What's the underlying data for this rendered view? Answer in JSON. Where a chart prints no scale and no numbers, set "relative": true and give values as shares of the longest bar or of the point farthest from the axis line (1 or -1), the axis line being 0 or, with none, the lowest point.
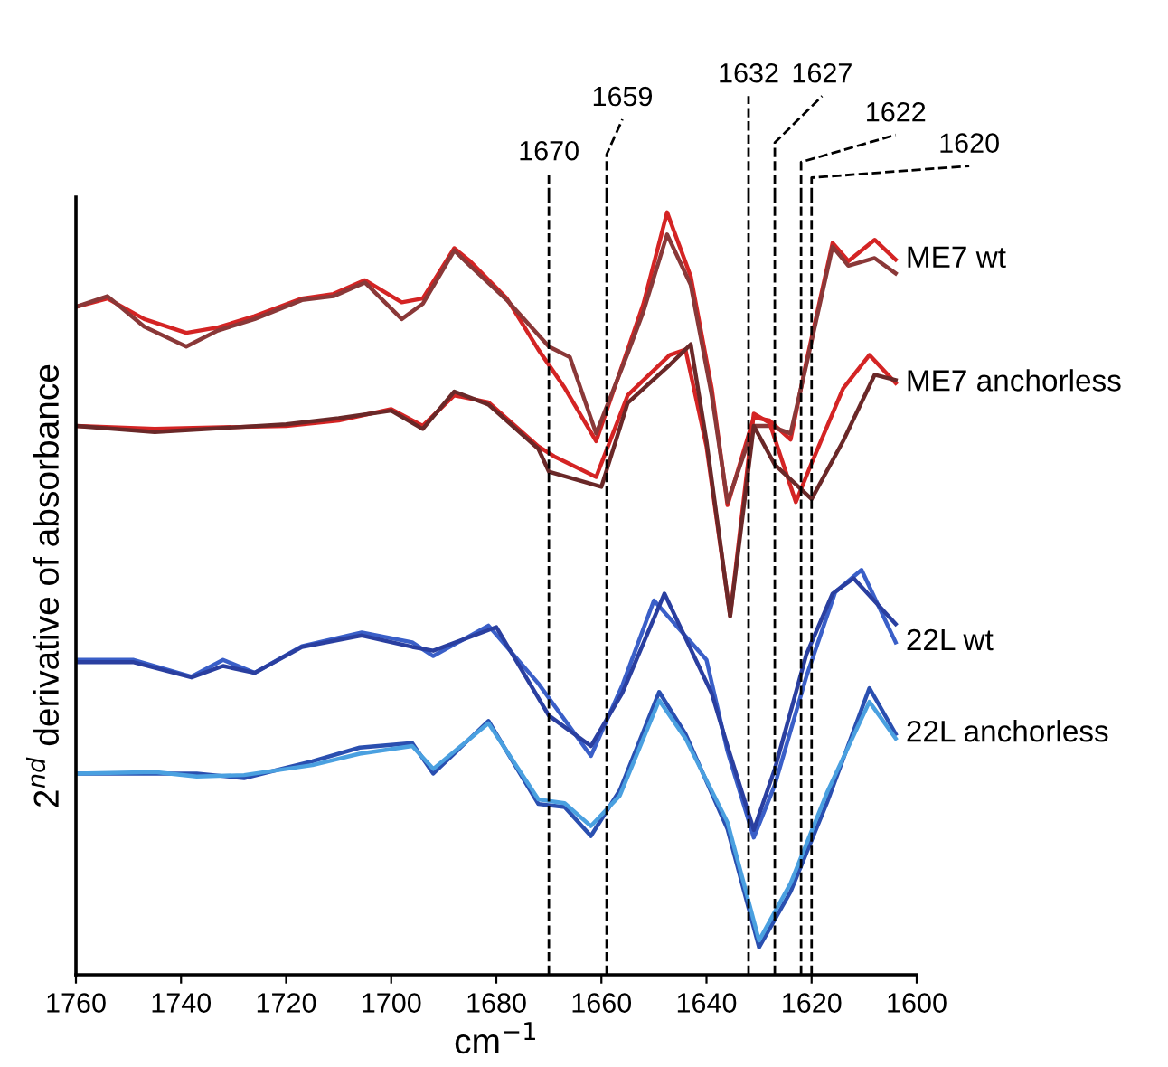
{
  "chart_data": {
    "type": "line",
    "relative": true,
    "xlabel": "cm$^{−1}$",
    "ylabel": "2$^{nd}$ derivative of absorbance",
    "xlim": [
      1760,
      1600
    ],
    "xticks": [
      1760,
      1740,
      1720,
      1700,
      1680,
      1660,
      1640,
      1620,
      1600
    ],
    "tick_labels": "x",
    "grid": false,
    "legend": false,
    "marker": "none",
    "line_style": "solid",
    "series": [
      {
        "name": "ME7 wt",
        "color": "#d42424",
        "x": [
          1760,
          1754,
          1747,
          1739,
          1733,
          1726,
          1717,
          1711,
          1705,
          1698,
          1694,
          1688,
          1685,
          1678,
          1672,
          1667,
          1661,
          1655,
          1652,
          1647.5,
          1643,
          1639,
          1636,
          1631,
          1628,
          1624,
          1621,
          1616,
          1613,
          1608,
          1604
        ],
        "values": [
          0.876,
          0.887,
          0.86,
          0.842,
          0.849,
          0.864,
          0.887,
          0.893,
          0.911,
          0.882,
          0.887,
          0.953,
          0.936,
          0.887,
          0.82,
          0.77,
          0.7,
          0.82,
          0.88,
          1.0,
          0.916,
          0.769,
          0.616,
          0.731,
          0.727,
          0.702,
          0.804,
          0.96,
          0.936,
          0.964,
          0.938
        ]
      },
      {
        "color": "#8a3838",
        "x": [
          1760,
          1754,
          1747,
          1739,
          1733,
          1726,
          1717,
          1711,
          1705,
          1698,
          1694,
          1688,
          1685,
          1678,
          1670,
          1666,
          1661,
          1655,
          1652,
          1647.5,
          1643,
          1639,
          1636,
          1631,
          1628,
          1624,
          1621,
          1616,
          1613,
          1608,
          1604
        ],
        "values": [
          0.876,
          0.89,
          0.85,
          0.824,
          0.845,
          0.86,
          0.885,
          0.89,
          0.908,
          0.86,
          0.88,
          0.95,
          0.93,
          0.885,
          0.824,
          0.81,
          0.71,
          0.815,
          0.87,
          0.971,
          0.905,
          0.76,
          0.62,
          0.72,
          0.72,
          0.71,
          0.8,
          0.955,
          0.93,
          0.94,
          0.92
        ]
      },
      {
        "name": "ME7 anchorless",
        "color": "#d42424",
        "x": [
          1760,
          1745,
          1720,
          1710,
          1700,
          1694,
          1688,
          1681.5,
          1672,
          1669,
          1661,
          1655,
          1647,
          1644,
          1640,
          1635.5,
          1631,
          1628,
          1623,
          1620,
          1614,
          1609,
          1604
        ],
        "values": [
          0.72,
          0.716,
          0.72,
          0.727,
          0.742,
          0.72,
          0.76,
          0.751,
          0.693,
          0.68,
          0.653,
          0.76,
          0.813,
          0.82,
          0.693,
          0.471,
          0.736,
          0.724,
          0.62,
          0.671,
          0.769,
          0.813,
          0.776
        ]
      },
      {
        "color": "#6a2828",
        "x": [
          1760,
          1745,
          1720,
          1710,
          1700,
          1694,
          1688,
          1681.5,
          1672,
          1670,
          1660,
          1655,
          1647,
          1643,
          1640,
          1635.5,
          1631,
          1627,
          1620,
          1614,
          1608,
          1604
        ],
        "values": [
          0.72,
          0.712,
          0.722,
          0.73,
          0.74,
          0.716,
          0.765,
          0.748,
          0.69,
          0.66,
          0.64,
          0.75,
          0.8,
          0.827,
          0.7,
          0.47,
          0.72,
          0.669,
          0.624,
          0.7,
          0.787,
          0.78
        ]
      },
      {
        "name": "22L wt",
        "color": "#3a5fc8",
        "x": [
          1760,
          1749,
          1738,
          1732,
          1726,
          1717,
          1705.6,
          1696,
          1692,
          1681.5,
          1672,
          1662,
          1656,
          1650,
          1640,
          1636,
          1631,
          1627,
          1621,
          1615.5,
          1610.5,
          1604
        ],
        "values": [
          0.413,
          0.413,
          0.391,
          0.413,
          0.396,
          0.431,
          0.449,
          0.436,
          0.418,
          0.458,
          0.382,
          0.287,
          0.38,
          0.491,
          0.413,
          0.293,
          0.18,
          0.249,
          0.391,
          0.502,
          0.531,
          0.436
        ]
      },
      {
        "color": "#2a3fa0",
        "x": [
          1760,
          1749,
          1738,
          1732,
          1726,
          1717,
          1705.6,
          1696,
          1692,
          1680,
          1670,
          1662,
          1656,
          1648,
          1639,
          1636,
          1631,
          1627,
          1621,
          1616,
          1612,
          1604
        ],
        "values": [
          0.41,
          0.41,
          0.39,
          0.405,
          0.396,
          0.43,
          0.445,
          0.43,
          0.425,
          0.456,
          0.34,
          0.3,
          0.37,
          0.5,
          0.369,
          0.3,
          0.19,
          0.27,
          0.42,
          0.5,
          0.52,
          0.46
        ]
      },
      {
        "name": "22L anchorless",
        "color": "#2a4fb0",
        "x": [
          1760,
          1745,
          1737,
          1728,
          1715,
          1706,
          1696,
          1692,
          1681.5,
          1672,
          1667,
          1662,
          1656.5,
          1649,
          1644,
          1636,
          1630,
          1624,
          1617,
          1609,
          1604
        ],
        "values": [
          0.264,
          0.264,
          0.264,
          0.258,
          0.28,
          0.298,
          0.304,
          0.264,
          0.333,
          0.224,
          0.22,
          0.182,
          0.242,
          0.371,
          0.316,
          0.191,
          0.036,
          0.109,
          0.227,
          0.376,
          0.316
        ]
      },
      {
        "color": "#4aa0e0",
        "x": [
          1760,
          1745,
          1737,
          1728,
          1715,
          1706,
          1696,
          1692,
          1681.5,
          1672,
          1667,
          1662,
          1656.5,
          1649,
          1644,
          1636,
          1630,
          1624,
          1617,
          1609,
          1604
        ],
        "values": [
          0.264,
          0.266,
          0.26,
          0.262,
          0.275,
          0.29,
          0.3,
          0.27,
          0.33,
          0.23,
          0.225,
          0.195,
          0.235,
          0.36,
          0.31,
          0.2,
          0.045,
          0.12,
          0.24,
          0.358,
          0.31
        ]
      }
    ],
    "ref_lines": [
      {
        "axis": "x",
        "value": 1670,
        "label": "1670",
        "line_style": "dashed",
        "color": "#000000"
      },
      {
        "axis": "x",
        "value": 1659,
        "label": "1659",
        "line_style": "dashed",
        "color": "#000000"
      },
      {
        "axis": "x",
        "value": 1632,
        "label": "1632",
        "line_style": "dashed",
        "color": "#000000"
      },
      {
        "axis": "x",
        "value": 1627,
        "label": "1627",
        "line_style": "dashed",
        "color": "#000000"
      },
      {
        "axis": "x",
        "value": 1622,
        "label": "1622",
        "line_style": "dashed",
        "color": "#000000"
      },
      {
        "axis": "x",
        "value": 1620,
        "label": "1620",
        "line_style": "dashed",
        "color": "#000000"
      }
    ]
  }
}
